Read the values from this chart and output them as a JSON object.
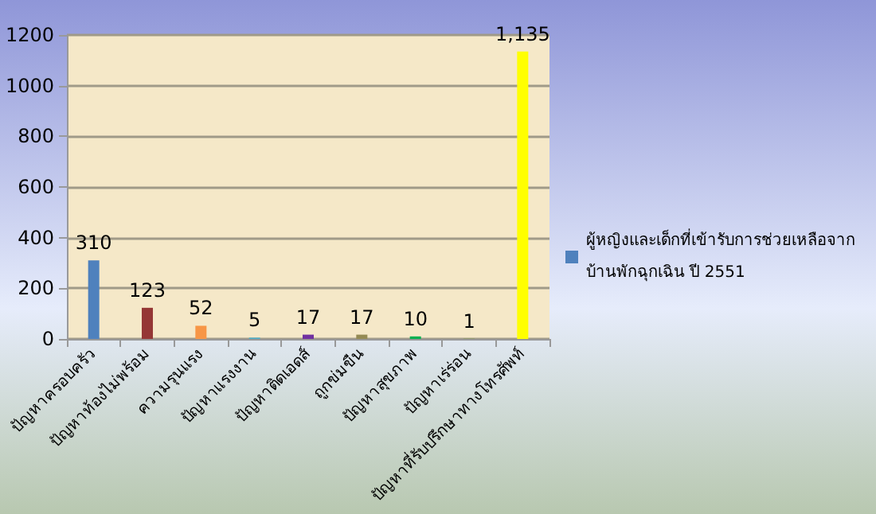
{
  "chart_data": {
    "type": "bar",
    "categories": [
      "ปัญหาครอบครัว",
      "ปัญหาท้องไม่พร้อม",
      "ความรุนแรง",
      "ปัญหาแรงงาน",
      "ปัญหาติดเอดส์",
      "ถูกข่มขืน",
      "ปัญหาสุขภาพ",
      "ปัญหาเร่ร่อน",
      "ปัญหาที่รับปรึกษาทางโทรศัพท์"
    ],
    "series": [
      {
        "name": "ผู้หญิงและเด็กที่เข้ารับการช่วยเหลือจากบ้านพักฉุกเฉิน ปี 2551",
        "color": "#4f81bd",
        "colors": [
          "#4f81bd",
          "#953735",
          "#f79646",
          "#4bacc6",
          "#7030a0",
          "#948a54",
          "#00b050",
          "#77933c",
          "#ffff00"
        ],
        "values": [
          310,
          123,
          52,
          5,
          17,
          17,
          10,
          1,
          1135
        ],
        "value_labels": [
          "310",
          "123",
          "52",
          "5",
          "17",
          "17",
          "10",
          "1",
          "1,135"
        ]
      }
    ],
    "ylim": [
      0,
      1200
    ],
    "yticks": [
      0,
      200,
      400,
      600,
      800,
      1000,
      1200
    ],
    "grid": "y",
    "legend": "right"
  }
}
